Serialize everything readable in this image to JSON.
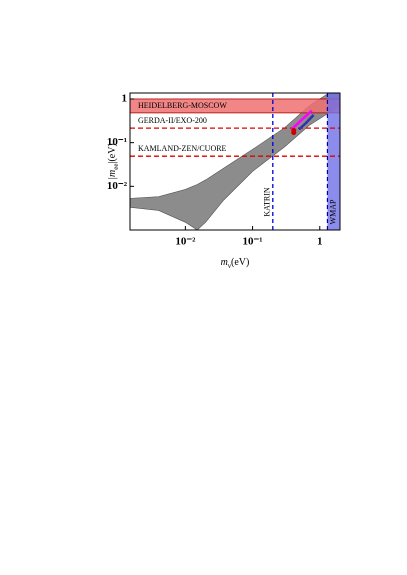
{
  "chart_data": {
    "type": "log-region",
    "x_label": {
      "symbol": "m",
      "subscript": "ν",
      "unit": "(eV)"
    },
    "y_label": {
      "symbol": "|m",
      "subscript": "ee",
      "unit": "|(eV)"
    },
    "log_x": true,
    "log_y": true,
    "xlim": [
      0.0015,
      2
    ],
    "ylim": [
      0.001,
      1.37
    ],
    "xticks": [
      {
        "value": 0.01,
        "label": "10⁻²"
      },
      {
        "value": 0.1,
        "label": "10⁻¹"
      },
      1
    ],
    "yticks": [
      {
        "value": 0.01,
        "label": "10⁻²"
      },
      {
        "value": 0.1,
        "label": "10⁻¹"
      },
      1
    ],
    "region": {
      "color": "#8c8c8c",
      "x": [
        0.0015,
        0.004,
        0.01,
        0.015,
        0.02,
        0.037,
        0.1,
        0.3,
        0.7,
        2
      ],
      "upper": [
        0.0053,
        0.0058,
        0.0085,
        0.011,
        0.014,
        0.026,
        0.07,
        0.22,
        0.7,
        2
      ],
      "lower": [
        0.0033,
        0.0028,
        0.0015,
        0.001,
        0.0015,
        0.0048,
        0.022,
        0.08,
        0.25,
        0.7
      ]
    },
    "bands": [
      {
        "name": "HEIDELBERG-MOSCOW",
        "axis": "y",
        "range": [
          0.48,
          1
        ],
        "color": "#f07070"
      },
      {
        "name": "WMAP",
        "axis": "x",
        "range": [
          1.3,
          2
        ],
        "color": "#6f6fe8"
      }
    ],
    "limits": [
      {
        "name": "GERDA-II/EXO-200",
        "axis": "y",
        "value": 0.215,
        "color": "#dd0000"
      },
      {
        "name": "KAMLAND-ZEN/CUORE",
        "axis": "y",
        "value": 0.049,
        "color": "#dd0000"
      },
      {
        "name": "KATRIN",
        "axis": "x",
        "value": 0.2,
        "color": "#0000dd"
      }
    ],
    "series": [
      {
        "kind": "line",
        "color": "#ff00ff",
        "x": [
          0.38,
          0.5,
          0.76
        ],
        "values": [
          0.2,
          0.3,
          0.54
        ]
      },
      {
        "kind": "line",
        "color": "#3030b0",
        "x": [
          0.49,
          0.62,
          0.81
        ],
        "values": [
          0.2,
          0.28,
          0.43
        ]
      },
      {
        "kind": "points",
        "color": "#cc0000",
        "x": [
          0.41,
          0.41
        ],
        "values": [
          0.17,
          0.19
        ]
      }
    ]
  }
}
